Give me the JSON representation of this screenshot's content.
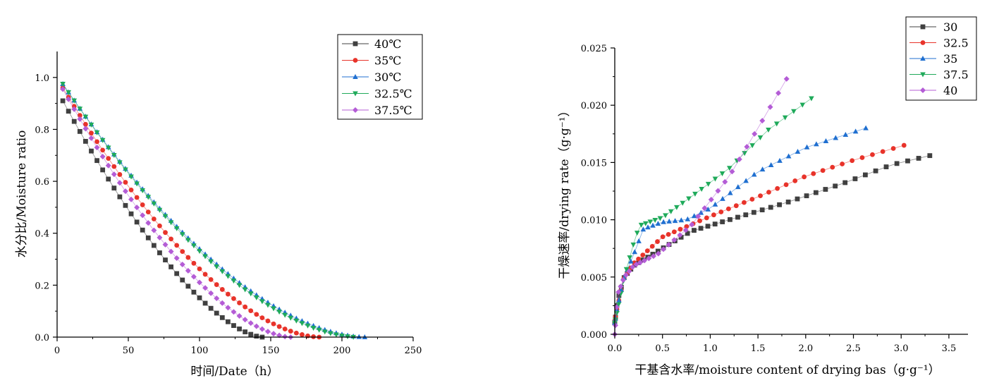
{
  "chart_data": [
    {
      "type": "line",
      "title": "",
      "xlabel": "时间/Date（h）",
      "ylabel": "水分比/Moisture ratio",
      "xlim": [
        0,
        250
      ],
      "ylim": [
        0,
        1.1
      ],
      "xticks": [
        "0",
        "50",
        "100",
        "150",
        "200",
        "250"
      ],
      "yticks": [
        "0.0",
        "0.2",
        "0.4",
        "0.6",
        "0.8",
        "1.0"
      ],
      "grid": false,
      "legend": "top-right",
      "series": [
        {
          "name": "40℃",
          "color": "#404040",
          "marker": "square",
          "x_start": 4,
          "x_step": 4,
          "dx": 140,
          "y0": 0.91,
          "p": 1.55
        },
        {
          "name": "35℃",
          "color": "#e8332a",
          "marker": "circle",
          "x_start": 4,
          "x_step": 4,
          "dx": 180,
          "y0": 0.96,
          "p": 1.7
        },
        {
          "name": "30℃",
          "color": "#1f6fd0",
          "marker": "triangle-up",
          "x_start": 4,
          "x_step": 4,
          "dx": 212,
          "y0": 0.975,
          "p": 1.75
        },
        {
          "name": "32.5℃",
          "color": "#1faa5a",
          "marker": "triangle-down",
          "x_start": 4,
          "x_step": 4,
          "dx": 206,
          "y0": 0.975,
          "p": 1.72
        },
        {
          "name": "37.5℃",
          "color": "#b45cd6",
          "marker": "diamond",
          "x_start": 4,
          "x_step": 4,
          "dx": 160,
          "y0": 0.955,
          "p": 1.65
        }
      ]
    },
    {
      "type": "line",
      "title": "",
      "xlabel": "干基含水率/moisture content of drying bas（g·g⁻¹）",
      "ylabel": "干燥速率/drying rate（g·g⁻¹）",
      "xlim": [
        0,
        3.7
      ],
      "ylim": [
        0,
        0.025
      ],
      "xticks": [
        "0.0",
        "0.5",
        "1.0",
        "1.5",
        "2.0",
        "2.5",
        "3.0",
        "3.5"
      ],
      "yticks": [
        "0.000",
        "0.005",
        "0.010",
        "0.015",
        "0.020",
        "0.025"
      ],
      "grid": false,
      "legend": "top-right",
      "series": [
        {
          "name": "30",
          "color": "#404040",
          "marker": "square",
          "n": 46,
          "curve": [
            [
              0,
              0.001
            ],
            [
              0.03,
              0.003
            ],
            [
              0.1,
              0.005
            ],
            [
              0.2,
              0.006
            ],
            [
              0.5,
              0.0075
            ],
            [
              0.8,
              0.009
            ],
            [
              1.2,
              0.01
            ],
            [
              1.8,
              0.0115
            ],
            [
              2.4,
              0.0132
            ],
            [
              2.9,
              0.0148
            ],
            [
              3.3,
              0.0156
            ]
          ]
        },
        {
          "name": "32.5",
          "color": "#e8332a",
          "marker": "circle",
          "n": 44,
          "curve": [
            [
              0,
              0.0012
            ],
            [
              0.03,
              0.0025
            ],
            [
              0.1,
              0.005
            ],
            [
              0.2,
              0.0062
            ],
            [
              0.5,
              0.0085
            ],
            [
              1.0,
              0.0103
            ],
            [
              1.5,
              0.012
            ],
            [
              2.0,
              0.0138
            ],
            [
              2.5,
              0.0152
            ],
            [
              3.03,
              0.0165
            ]
          ]
        },
        {
          "name": "35",
          "color": "#1f6fd0",
          "marker": "triangle-up",
          "n": 40,
          "curve": [
            [
              0,
              0.001
            ],
            [
              0.03,
              0.0025
            ],
            [
              0.1,
              0.005
            ],
            [
              0.2,
              0.007
            ],
            [
              0.3,
              0.0092
            ],
            [
              0.5,
              0.0098
            ],
            [
              0.75,
              0.01
            ],
            [
              1.0,
              0.011
            ],
            [
              1.5,
              0.0142
            ],
            [
              2.0,
              0.0163
            ],
            [
              2.63,
              0.018
            ]
          ]
        },
        {
          "name": "37.5",
          "color": "#1faa5a",
          "marker": "triangle-down",
          "n": 36,
          "curve": [
            [
              0,
              0.001
            ],
            [
              0.03,
              0.0022
            ],
            [
              0.1,
              0.005
            ],
            [
              0.2,
              0.008
            ],
            [
              0.26,
              0.0095
            ],
            [
              0.5,
              0.0102
            ],
            [
              0.8,
              0.012
            ],
            [
              1.2,
              0.0145
            ],
            [
              1.6,
              0.0178
            ],
            [
              2.06,
              0.0206
            ]
          ]
        },
        {
          "name": "40",
          "color": "#b45cd6",
          "marker": "diamond",
          "n": 34,
          "curve": [
            [
              0,
              0.0
            ],
            [
              0.03,
              0.0035
            ],
            [
              0.1,
              0.005
            ],
            [
              0.2,
              0.006
            ],
            [
              0.45,
              0.007
            ],
            [
              0.8,
              0.0095
            ],
            [
              1.2,
              0.0138
            ],
            [
              1.5,
              0.018
            ],
            [
              1.8,
              0.0223
            ]
          ]
        }
      ]
    }
  ]
}
